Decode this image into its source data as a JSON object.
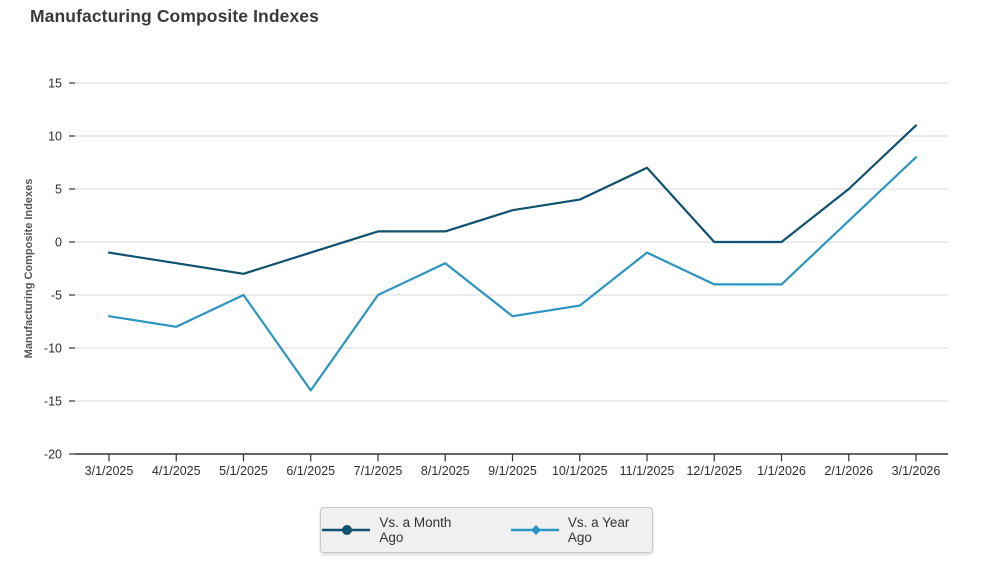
{
  "chart_data": {
    "type": "line",
    "title": "Manufacturing Composite Indexes",
    "xlabel": "",
    "ylabel": "Manufacturing Composite Indexes",
    "ylim": [
      -20,
      15
    ],
    "yticks": [
      15,
      10,
      5,
      0,
      -5,
      -10,
      -15,
      -20
    ],
    "grid": true,
    "legend_position": "bottom",
    "categories": [
      "3/1/2025",
      "4/1/2025",
      "5/1/2025",
      "6/1/2025",
      "7/1/2025",
      "8/1/2025",
      "9/1/2025",
      "10/1/2025",
      "11/1/2025",
      "12/1/2025",
      "1/1/2026",
      "2/1/2026",
      "3/1/2026"
    ],
    "series": [
      {
        "name": "Vs. a Month Ago",
        "marker": "circle",
        "color": "#0f516f",
        "values": [
          -1,
          -2,
          -3,
          -1,
          1,
          1,
          3,
          4,
          7,
          0,
          0,
          5,
          11
        ]
      },
      {
        "name": "Vs. a Year Ago",
        "marker": "diamond",
        "color": "#2b95c1",
        "values": [
          -7,
          -8,
          -5,
          -14,
          -5,
          -2,
          -7,
          -6,
          -1,
          -4,
          -4,
          2,
          8
        ]
      }
    ],
    "colors": {
      "grid_line": "#d8d8d8",
      "axis_line": "#333333",
      "tick_label": "#2f2f2f",
      "axis_title": "#555555",
      "title": "#3a3a3a"
    }
  }
}
